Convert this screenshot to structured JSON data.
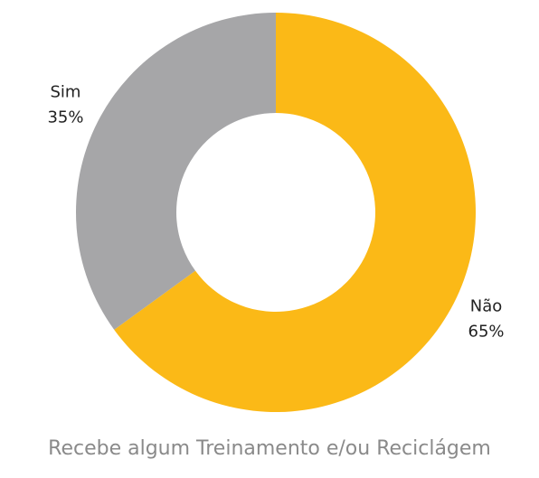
{
  "chart_data": {
    "type": "pie",
    "title": "Recebe algum Treinamento e/ou Reciclágem",
    "categories": [
      "Não",
      "Sim"
    ],
    "values": [
      65,
      35
    ],
    "value_labels": [
      "65%",
      "35%"
    ],
    "colors": [
      "#FBB917",
      "#A6A6A8"
    ],
    "donut": true
  }
}
